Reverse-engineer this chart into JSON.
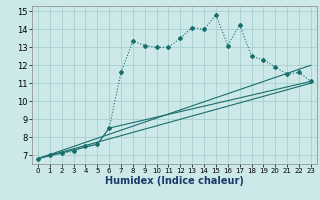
{
  "xlabel": "Humidex (Indice chaleur)",
  "xlim": [
    -0.5,
    23.5
  ],
  "ylim": [
    6.5,
    15.3
  ],
  "xticks": [
    0,
    1,
    2,
    3,
    4,
    5,
    6,
    7,
    8,
    9,
    10,
    11,
    12,
    13,
    14,
    15,
    16,
    17,
    18,
    19,
    20,
    21,
    22,
    23
  ],
  "yticks": [
    7,
    8,
    9,
    10,
    11,
    12,
    13,
    14,
    15
  ],
  "bg_color": "#cce8e8",
  "line_color": "#1a6e6e",
  "grid_color": "#a8d0d0",
  "line1_x": [
    0,
    1,
    2,
    3,
    4,
    5,
    6,
    7,
    8,
    9,
    10,
    11,
    12,
    13,
    14,
    15,
    16,
    17,
    18,
    19,
    20,
    21,
    22,
    23
  ],
  "line1_y": [
    6.8,
    7.0,
    7.1,
    7.2,
    7.5,
    7.6,
    8.5,
    11.6,
    13.35,
    13.1,
    13.0,
    13.0,
    13.5,
    14.1,
    14.0,
    14.8,
    13.1,
    14.25,
    12.5,
    12.3,
    11.9,
    11.5,
    11.6,
    11.1
  ],
  "line2_x": [
    0,
    5,
    6,
    23
  ],
  "line2_y": [
    6.8,
    7.6,
    8.5,
    11.1
  ],
  "line3_x": [
    0,
    23
  ],
  "line3_y": [
    6.8,
    12.0
  ],
  "line4_x": [
    0,
    23
  ],
  "line4_y": [
    6.8,
    11.0
  ],
  "xlabel_fontsize": 7,
  "tick_fontsize": 6
}
